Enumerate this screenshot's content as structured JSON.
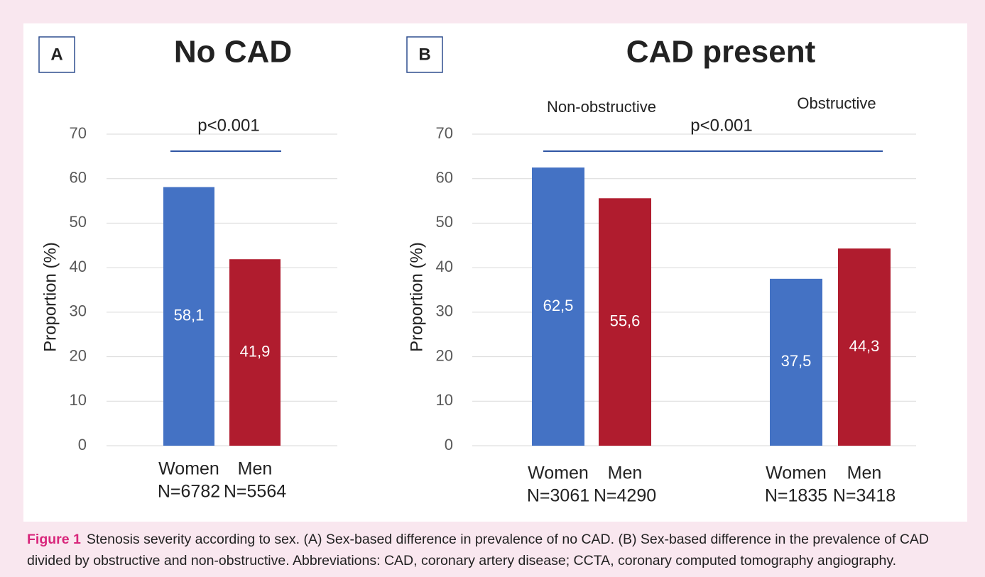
{
  "chart_data": [
    {
      "type": "bar",
      "panel": "A",
      "title": "No CAD",
      "annotation": "p<0.001",
      "ylabel": "Proportion (%)",
      "categories": [
        "Women",
        "Men"
      ],
      "category_counts": [
        "N=6782",
        "N=5564"
      ],
      "values": [
        58.1,
        41.9
      ],
      "value_labels": [
        "58,1",
        "41,9"
      ],
      "colors": [
        "#4472c4",
        "#b01c2e"
      ],
      "ylim": [
        0,
        70
      ],
      "yticks": [
        0,
        10,
        20,
        30,
        40,
        50,
        60,
        70
      ],
      "grid": true
    },
    {
      "type": "bar",
      "panel": "B",
      "title": "CAD present",
      "annotation": "p<0.001",
      "ylabel": "Proportion (%)",
      "group_labels": [
        "Non-obstructive",
        "Obstructive"
      ],
      "categories": [
        "Women",
        "Men",
        "Women",
        "Men"
      ],
      "category_counts": [
        "N=3061",
        "N=4290",
        "N=1835",
        "N=3418"
      ],
      "values": [
        62.5,
        55.6,
        37.5,
        44.3
      ],
      "value_labels": [
        "62,5",
        "55,6",
        "37,5",
        "44,3"
      ],
      "colors": [
        "#4472c4",
        "#b01c2e",
        "#4472c4",
        "#b01c2e"
      ],
      "ylim": [
        0,
        70
      ],
      "yticks": [
        0,
        10,
        20,
        30,
        40,
        50,
        60,
        70
      ],
      "grid": true
    }
  ],
  "caption": {
    "label": "Figure 1",
    "text": "Stenosis severity according to sex. (A) Sex-based difference in prevalence of no CAD. (B) Sex-based difference in the prevalence of CAD divided by obstructive and non-obstructive. Abbreviations: CAD, coronary artery disease; CCTA, coronary computed tomography angiography."
  }
}
